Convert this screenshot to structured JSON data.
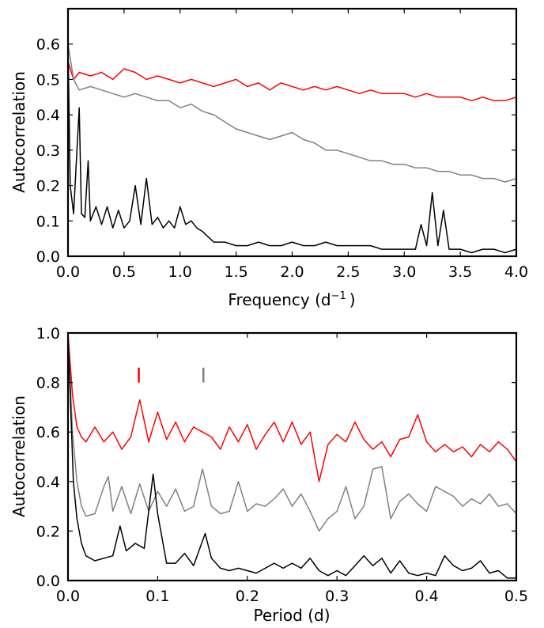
{
  "chart_data": [
    {
      "type": "line",
      "xlabel": "Frequency (d",
      "xlabel_superscript": "−1",
      "xlabel_suffix": ")",
      "ylabel": "Autocorrelation",
      "xlim": [
        0,
        4.0
      ],
      "ylim": [
        0,
        0.7
      ],
      "xticks": [
        "0.0",
        "0.5",
        "1.0",
        "1.5",
        "2.0",
        "2.5",
        "3.0",
        "3.5",
        "4.0"
      ],
      "yticks": [
        "0.0",
        "0.1",
        "0.2",
        "0.3",
        "0.4",
        "0.5",
        "0.6"
      ],
      "grid": false,
      "legend": "none",
      "series": [
        {
          "color": "#ff0000",
          "x": [
            0.0,
            0.05,
            0.1,
            0.2,
            0.3,
            0.4,
            0.5,
            0.6,
            0.7,
            0.8,
            0.9,
            1.0,
            1.1,
            1.2,
            1.3,
            1.4,
            1.5,
            1.6,
            1.7,
            1.8,
            1.9,
            2.0,
            2.1,
            2.2,
            2.3,
            2.4,
            2.5,
            2.6,
            2.7,
            2.8,
            2.9,
            3.0,
            3.1,
            3.2,
            3.3,
            3.4,
            3.5,
            3.6,
            3.7,
            3.8,
            3.9,
            4.0
          ],
          "values": [
            0.55,
            0.5,
            0.52,
            0.51,
            0.52,
            0.5,
            0.53,
            0.52,
            0.5,
            0.51,
            0.5,
            0.49,
            0.5,
            0.49,
            0.48,
            0.49,
            0.5,
            0.48,
            0.49,
            0.47,
            0.49,
            0.48,
            0.47,
            0.48,
            0.47,
            0.48,
            0.47,
            0.46,
            0.47,
            0.46,
            0.46,
            0.46,
            0.45,
            0.46,
            0.45,
            0.45,
            0.45,
            0.44,
            0.45,
            0.44,
            0.44,
            0.45
          ]
        },
        {
          "color": "#808080",
          "x": [
            0.0,
            0.05,
            0.1,
            0.2,
            0.3,
            0.4,
            0.5,
            0.6,
            0.7,
            0.8,
            0.9,
            1.0,
            1.1,
            1.2,
            1.3,
            1.4,
            1.5,
            1.6,
            1.7,
            1.8,
            1.9,
            2.0,
            2.1,
            2.2,
            2.3,
            2.4,
            2.5,
            2.6,
            2.7,
            2.8,
            2.9,
            3.0,
            3.1,
            3.2,
            3.3,
            3.4,
            3.5,
            3.6,
            3.7,
            3.8,
            3.9,
            4.0
          ],
          "values": [
            0.6,
            0.5,
            0.47,
            0.48,
            0.47,
            0.46,
            0.45,
            0.46,
            0.45,
            0.44,
            0.44,
            0.42,
            0.43,
            0.41,
            0.4,
            0.38,
            0.36,
            0.35,
            0.34,
            0.33,
            0.34,
            0.35,
            0.33,
            0.32,
            0.3,
            0.3,
            0.29,
            0.28,
            0.27,
            0.27,
            0.26,
            0.26,
            0.25,
            0.25,
            0.24,
            0.24,
            0.23,
            0.23,
            0.22,
            0.22,
            0.21,
            0.22
          ]
        },
        {
          "color": "#000000",
          "x": [
            0.0,
            0.02,
            0.05,
            0.08,
            0.1,
            0.12,
            0.15,
            0.18,
            0.2,
            0.25,
            0.3,
            0.35,
            0.4,
            0.45,
            0.5,
            0.55,
            0.6,
            0.65,
            0.7,
            0.75,
            0.8,
            0.85,
            0.9,
            0.95,
            1.0,
            1.05,
            1.1,
            1.15,
            1.2,
            1.3,
            1.4,
            1.5,
            1.6,
            1.7,
            1.8,
            1.9,
            2.0,
            2.1,
            2.2,
            2.3,
            2.4,
            2.5,
            2.6,
            2.7,
            2.8,
            2.9,
            3.0,
            3.1,
            3.15,
            3.2,
            3.25,
            3.3,
            3.35,
            3.4,
            3.5,
            3.6,
            3.7,
            3.8,
            3.9,
            4.0
          ],
          "values": [
            0.6,
            0.2,
            0.12,
            0.3,
            0.42,
            0.12,
            0.11,
            0.27,
            0.1,
            0.14,
            0.09,
            0.14,
            0.08,
            0.13,
            0.08,
            0.1,
            0.2,
            0.09,
            0.22,
            0.09,
            0.11,
            0.08,
            0.1,
            0.08,
            0.14,
            0.09,
            0.1,
            0.08,
            0.07,
            0.04,
            0.04,
            0.03,
            0.03,
            0.04,
            0.03,
            0.03,
            0.04,
            0.03,
            0.03,
            0.04,
            0.03,
            0.03,
            0.03,
            0.03,
            0.02,
            0.02,
            0.02,
            0.02,
            0.09,
            0.03,
            0.18,
            0.03,
            0.13,
            0.02,
            0.02,
            0.01,
            0.02,
            0.02,
            0.01,
            0.02
          ]
        }
      ]
    },
    {
      "type": "line",
      "xlabel": "Period (d)",
      "ylabel": "Autocorrelation",
      "xlim": [
        0,
        0.5
      ],
      "ylim": [
        0,
        1.0
      ],
      "xticks": [
        "0.0",
        "0.1",
        "0.2",
        "0.3",
        "0.4",
        "0.5"
      ],
      "yticks": [
        "0.0",
        "0.2",
        "0.4",
        "0.6",
        "0.8",
        "1.0"
      ],
      "grid": false,
      "legend": "none",
      "markers": [
        {
          "x": 0.079,
          "y_from": 0.8,
          "y_to": 0.86,
          "color": "#ff0000"
        },
        {
          "x": 0.151,
          "y_from": 0.8,
          "y_to": 0.86,
          "color": "#808080"
        }
      ],
      "series": [
        {
          "color": "#ff0000",
          "x": [
            0.0,
            0.005,
            0.01,
            0.015,
            0.02,
            0.03,
            0.04,
            0.05,
            0.06,
            0.07,
            0.08,
            0.09,
            0.1,
            0.11,
            0.12,
            0.13,
            0.14,
            0.15,
            0.16,
            0.17,
            0.18,
            0.19,
            0.2,
            0.21,
            0.22,
            0.23,
            0.24,
            0.25,
            0.26,
            0.27,
            0.28,
            0.29,
            0.3,
            0.31,
            0.32,
            0.33,
            0.34,
            0.35,
            0.36,
            0.37,
            0.38,
            0.39,
            0.4,
            0.41,
            0.42,
            0.43,
            0.44,
            0.45,
            0.46,
            0.47,
            0.48,
            0.49,
            0.5
          ],
          "values": [
            1.0,
            0.75,
            0.62,
            0.58,
            0.56,
            0.62,
            0.56,
            0.6,
            0.53,
            0.58,
            0.73,
            0.56,
            0.68,
            0.57,
            0.64,
            0.56,
            0.62,
            0.6,
            0.58,
            0.53,
            0.62,
            0.56,
            0.63,
            0.53,
            0.59,
            0.64,
            0.56,
            0.64,
            0.55,
            0.6,
            0.4,
            0.55,
            0.59,
            0.56,
            0.64,
            0.57,
            0.53,
            0.56,
            0.5,
            0.57,
            0.58,
            0.67,
            0.56,
            0.52,
            0.55,
            0.52,
            0.54,
            0.5,
            0.55,
            0.52,
            0.56,
            0.53,
            0.48
          ]
        },
        {
          "color": "#808080",
          "x": [
            0.0,
            0.005,
            0.01,
            0.015,
            0.02,
            0.03,
            0.04,
            0.045,
            0.05,
            0.06,
            0.07,
            0.08,
            0.09,
            0.1,
            0.11,
            0.12,
            0.13,
            0.14,
            0.15,
            0.16,
            0.17,
            0.18,
            0.19,
            0.2,
            0.21,
            0.22,
            0.23,
            0.24,
            0.25,
            0.26,
            0.27,
            0.28,
            0.29,
            0.3,
            0.31,
            0.32,
            0.33,
            0.34,
            0.35,
            0.36,
            0.37,
            0.38,
            0.39,
            0.4,
            0.41,
            0.42,
            0.43,
            0.44,
            0.45,
            0.46,
            0.47,
            0.48,
            0.49,
            0.5
          ],
          "values": [
            1.0,
            0.6,
            0.4,
            0.3,
            0.26,
            0.27,
            0.38,
            0.42,
            0.28,
            0.38,
            0.27,
            0.39,
            0.28,
            0.36,
            0.3,
            0.37,
            0.28,
            0.3,
            0.45,
            0.3,
            0.27,
            0.28,
            0.4,
            0.28,
            0.31,
            0.3,
            0.33,
            0.37,
            0.3,
            0.35,
            0.28,
            0.2,
            0.25,
            0.28,
            0.38,
            0.25,
            0.3,
            0.45,
            0.46,
            0.25,
            0.32,
            0.35,
            0.31,
            0.28,
            0.38,
            0.36,
            0.34,
            0.3,
            0.33,
            0.31,
            0.35,
            0.3,
            0.31,
            0.27
          ]
        },
        {
          "color": "#000000",
          "x": [
            0.0,
            0.003,
            0.006,
            0.01,
            0.015,
            0.02,
            0.03,
            0.04,
            0.05,
            0.058,
            0.065,
            0.075,
            0.085,
            0.095,
            0.1,
            0.11,
            0.12,
            0.13,
            0.14,
            0.153,
            0.16,
            0.17,
            0.18,
            0.19,
            0.2,
            0.21,
            0.22,
            0.23,
            0.24,
            0.25,
            0.26,
            0.27,
            0.28,
            0.29,
            0.3,
            0.31,
            0.32,
            0.33,
            0.34,
            0.35,
            0.36,
            0.37,
            0.38,
            0.39,
            0.4,
            0.41,
            0.42,
            0.43,
            0.44,
            0.45,
            0.46,
            0.47,
            0.48,
            0.49,
            0.5
          ],
          "values": [
            1.0,
            0.7,
            0.4,
            0.25,
            0.15,
            0.1,
            0.08,
            0.09,
            0.1,
            0.22,
            0.12,
            0.15,
            0.13,
            0.43,
            0.27,
            0.07,
            0.07,
            0.11,
            0.06,
            0.19,
            0.09,
            0.05,
            0.04,
            0.05,
            0.04,
            0.03,
            0.05,
            0.07,
            0.05,
            0.07,
            0.05,
            0.09,
            0.04,
            0.02,
            0.04,
            0.02,
            0.06,
            0.1,
            0.06,
            0.09,
            0.03,
            0.08,
            0.03,
            0.02,
            0.03,
            0.02,
            0.1,
            0.06,
            0.04,
            0.05,
            0.08,
            0.03,
            0.04,
            0.01,
            0.01
          ]
        }
      ]
    }
  ]
}
